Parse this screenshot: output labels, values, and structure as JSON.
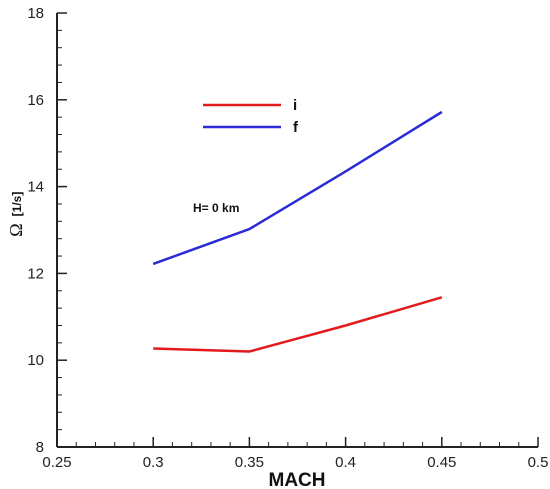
{
  "chart_data": {
    "type": "line",
    "xlabel": "MACH",
    "ylabel_symbol": "Ω",
    "ylabel_unit": "[1/s]",
    "xlim": [
      0.25,
      0.5
    ],
    "ylim": [
      8,
      18
    ],
    "xticks": [
      0.25,
      0.3,
      0.35,
      0.4,
      0.45,
      0.5
    ],
    "xtick_labels": [
      "0.25",
      "0.3",
      "0.35",
      "0.4",
      "0.45",
      "0.5"
    ],
    "yticks": [
      8,
      10,
      12,
      14,
      16,
      18
    ],
    "ytick_labels": [
      "8",
      "10",
      "12",
      "14",
      "16",
      "18"
    ],
    "x_minor_step": 0.01,
    "y_minor_step": 0.4,
    "grid": false,
    "legend_position": "top-center",
    "annotation": "H= 0 km",
    "series": [
      {
        "name": "i",
        "color": "#e31a1c",
        "x": [
          0.3,
          0.35,
          0.4,
          0.45
        ],
        "y": [
          10.27,
          10.2,
          10.8,
          11.45
        ]
      },
      {
        "name": "f",
        "color": "#2b2bd6",
        "x": [
          0.3,
          0.35,
          0.4,
          0.45
        ],
        "y": [
          12.22,
          13.02,
          14.35,
          15.72
        ]
      }
    ]
  }
}
